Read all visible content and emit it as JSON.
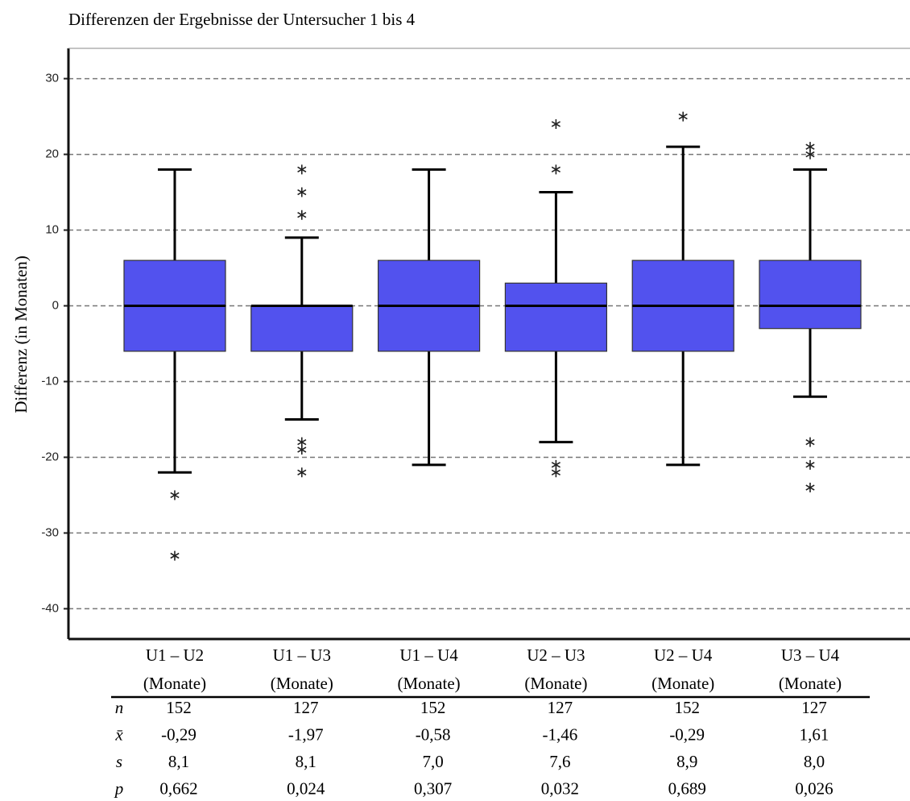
{
  "chart_data": {
    "type": "box",
    "title": "Differenzen der Ergebnisse der Untersucher 1 bis 4",
    "y_label": "Differenz (in Monaten)",
    "categories": [
      [
        "U1 – U2",
        "(Monate)"
      ],
      [
        "U1 – U3",
        "(Monate)"
      ],
      [
        "U1 – U4",
        "(Monate)"
      ],
      [
        "U2 – U3",
        "(Monate)"
      ],
      [
        "U2 – U4",
        "(Monate)"
      ],
      [
        "U3 – U4",
        "(Monate)"
      ]
    ],
    "color": "#5252ee",
    "boxes": [
      {
        "min": -22,
        "q1": -6,
        "median": 0,
        "q3": 6,
        "max": 18,
        "outliers": [
          -25,
          -33
        ]
      },
      {
        "min": -15,
        "q1": -6,
        "median": 0,
        "q3": 0,
        "max": 9,
        "outliers": [
          18,
          15,
          12,
          -18,
          -19,
          -22
        ]
      },
      {
        "min": -21,
        "q1": -6,
        "median": 0,
        "q3": 6,
        "max": 18,
        "outliers": []
      },
      {
        "min": -18,
        "q1": -6,
        "median": 0,
        "q3": 3,
        "max": 15,
        "outliers": [
          24,
          18,
          -21,
          -22
        ]
      },
      {
        "min": -21,
        "q1": -6,
        "median": 0,
        "q3": 6,
        "max": 21,
        "outliers": [
          25
        ]
      },
      {
        "min": -12,
        "q1": -3,
        "median": 0,
        "q3": 6,
        "max": 18,
        "outliers": [
          21,
          20,
          -18,
          -21,
          -24
        ]
      }
    ],
    "ylim": [
      -44,
      34
    ],
    "yticks": [
      -40,
      -30,
      -20,
      -10,
      0,
      10,
      20,
      30
    ],
    "grid": true
  },
  "table": {
    "rows": [
      [
        "n",
        "152",
        "127",
        "152",
        "127",
        "152",
        "127"
      ],
      [
        "x̄",
        "-0,29",
        "-1,97",
        "-0,58",
        "-1,46",
        "-0,29",
        "1,61"
      ],
      [
        "s",
        "8,1",
        "8,1",
        "7,0",
        "7,6",
        "8,9",
        "8,0"
      ],
      [
        "p",
        "0,662",
        "0,024",
        "0,307",
        "0,032",
        "0,689",
        "0,026"
      ]
    ]
  }
}
